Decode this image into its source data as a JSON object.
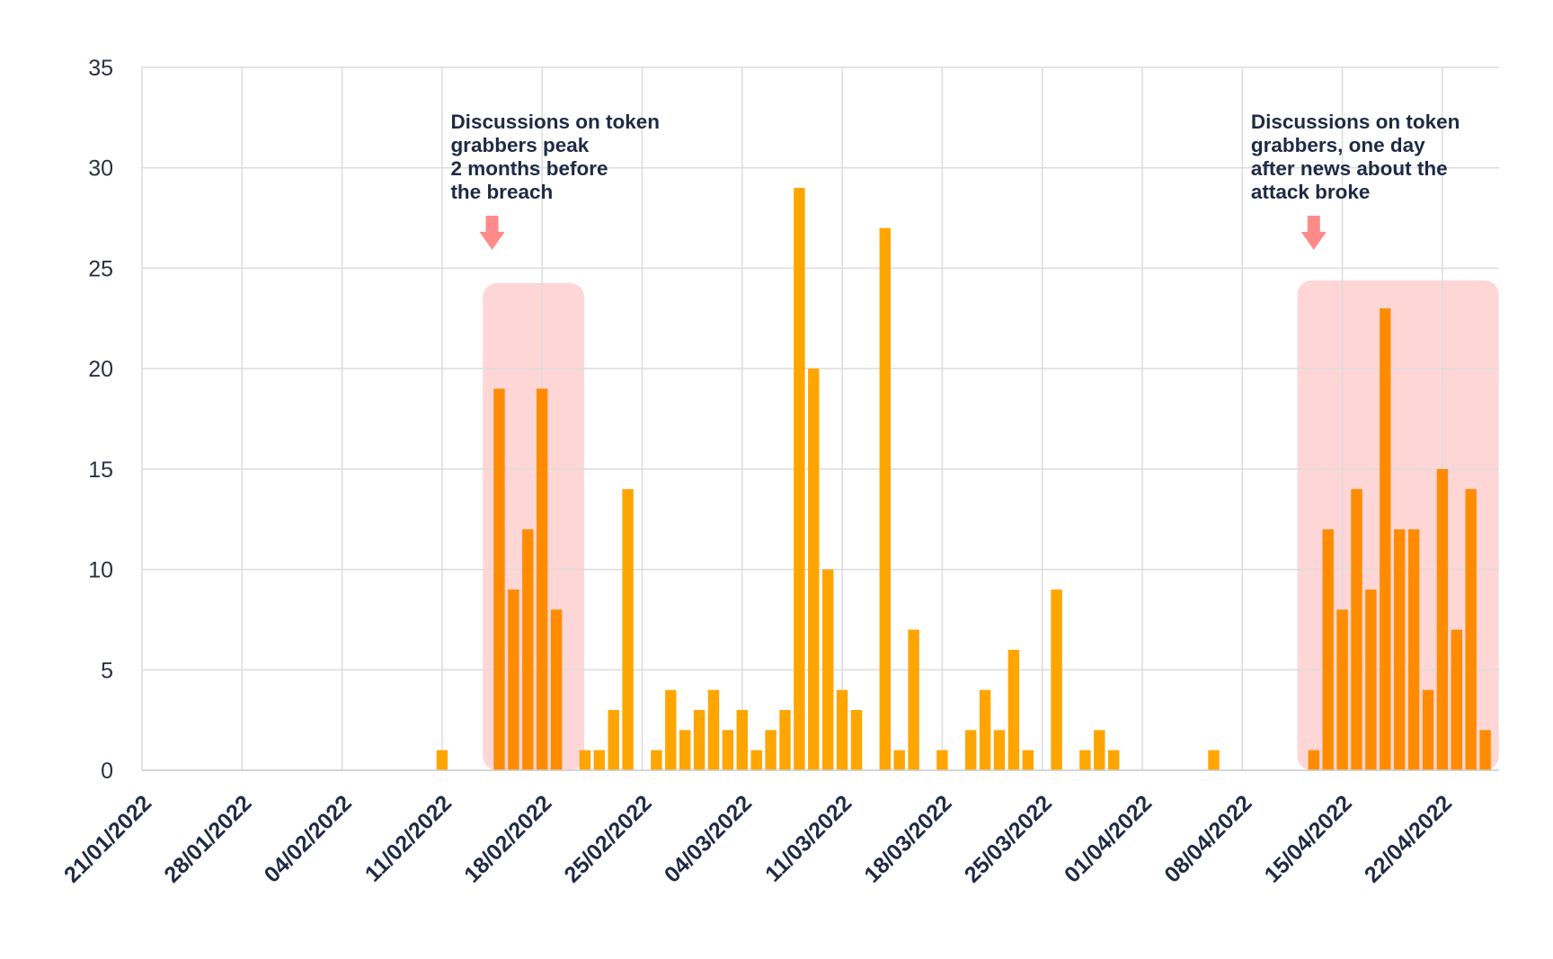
{
  "chart_data": {
    "type": "bar",
    "title": "",
    "xlabel": "",
    "ylabel": "",
    "ylim": [
      0,
      35
    ],
    "yticks": [
      0,
      5,
      10,
      15,
      20,
      25,
      30,
      35
    ],
    "grid": true,
    "x_ticks": [
      "21/01/2022",
      "28/01/2022",
      "04/02/2022",
      "11/02/2022",
      "18/02/2022",
      "25/02/2022",
      "04/03/2022",
      "11/03/2022",
      "18/03/2022",
      "25/03/2022",
      "01/04/2022",
      "08/04/2022",
      "15/04/2022",
      "22/04/2022"
    ],
    "x_start": "21/01/2022",
    "x_end": "25/04/2022",
    "colors": {
      "bar": "#FFA500",
      "bar_highlight": "#FF8C00",
      "highlight_box": "#FFD6D6",
      "arrow": "#FF8A8A",
      "grid": "#DCDCDC",
      "text": "#1F2A44"
    },
    "series": [
      {
        "values": [
          {
            "x": "11/02/2022",
            "y": 1
          },
          {
            "x": "15/02/2022",
            "y": 19
          },
          {
            "x": "16/02/2022",
            "y": 9
          },
          {
            "x": "17/02/2022",
            "y": 12
          },
          {
            "x": "18/02/2022",
            "y": 19
          },
          {
            "x": "19/02/2022",
            "y": 8
          },
          {
            "x": "21/02/2022",
            "y": 1
          },
          {
            "x": "22/02/2022",
            "y": 1
          },
          {
            "x": "23/02/2022",
            "y": 3
          },
          {
            "x": "24/02/2022",
            "y": 14
          },
          {
            "x": "26/02/2022",
            "y": 1
          },
          {
            "x": "27/02/2022",
            "y": 4
          },
          {
            "x": "28/02/2022",
            "y": 2
          },
          {
            "x": "01/03/2022",
            "y": 3
          },
          {
            "x": "02/03/2022",
            "y": 4
          },
          {
            "x": "03/03/2022",
            "y": 2
          },
          {
            "x": "04/03/2022",
            "y": 3
          },
          {
            "x": "05/03/2022",
            "y": 1
          },
          {
            "x": "06/03/2022",
            "y": 2
          },
          {
            "x": "07/03/2022",
            "y": 3
          },
          {
            "x": "08/03/2022",
            "y": 29
          },
          {
            "x": "09/03/2022",
            "y": 20
          },
          {
            "x": "10/03/2022",
            "y": 10
          },
          {
            "x": "11/03/2022",
            "y": 4
          },
          {
            "x": "12/03/2022",
            "y": 3
          },
          {
            "x": "14/03/2022",
            "y": 27
          },
          {
            "x": "15/03/2022",
            "y": 1
          },
          {
            "x": "16/03/2022",
            "y": 7
          },
          {
            "x": "18/03/2022",
            "y": 1
          },
          {
            "x": "20/03/2022",
            "y": 2
          },
          {
            "x": "21/03/2022",
            "y": 4
          },
          {
            "x": "22/03/2022",
            "y": 2
          },
          {
            "x": "23/03/2022",
            "y": 6
          },
          {
            "x": "24/03/2022",
            "y": 1
          },
          {
            "x": "26/03/2022",
            "y": 9
          },
          {
            "x": "28/03/2022",
            "y": 1
          },
          {
            "x": "29/03/2022",
            "y": 2
          },
          {
            "x": "30/03/2022",
            "y": 1
          },
          {
            "x": "06/04/2022",
            "y": 1
          },
          {
            "x": "13/04/2022",
            "y": 1
          },
          {
            "x": "14/04/2022",
            "y": 12
          },
          {
            "x": "15/04/2022",
            "y": 8
          },
          {
            "x": "16/04/2022",
            "y": 14
          },
          {
            "x": "17/04/2022",
            "y": 9
          },
          {
            "x": "18/04/2022",
            "y": 23
          },
          {
            "x": "19/04/2022",
            "y": 12
          },
          {
            "x": "20/04/2022",
            "y": 12
          },
          {
            "x": "21/04/2022",
            "y": 4
          },
          {
            "x": "22/04/2022",
            "y": 15
          },
          {
            "x": "23/04/2022",
            "y": 7
          },
          {
            "x": "24/04/2022",
            "y": 14
          },
          {
            "x": "25/04/2022",
            "y": 2
          }
        ]
      }
    ],
    "highlight_ranges": [
      {
        "from": "14/02/2022",
        "to": "20/02/2022"
      },
      {
        "from": "12/04/2022",
        "to": "25/04/2022"
      }
    ],
    "annotations": [
      {
        "lines": [
          "Discussions on token",
          "grabbers peak",
          "2 months before",
          "the breach"
        ],
        "x": "15/02/2022",
        "arrow_x": "15/02/2022"
      },
      {
        "lines": [
          "Discussions on token",
          "grabbers, one day",
          "after news about the",
          "attack broke"
        ],
        "x": "12/04/2022",
        "arrow_x": "13/04/2022"
      }
    ]
  }
}
